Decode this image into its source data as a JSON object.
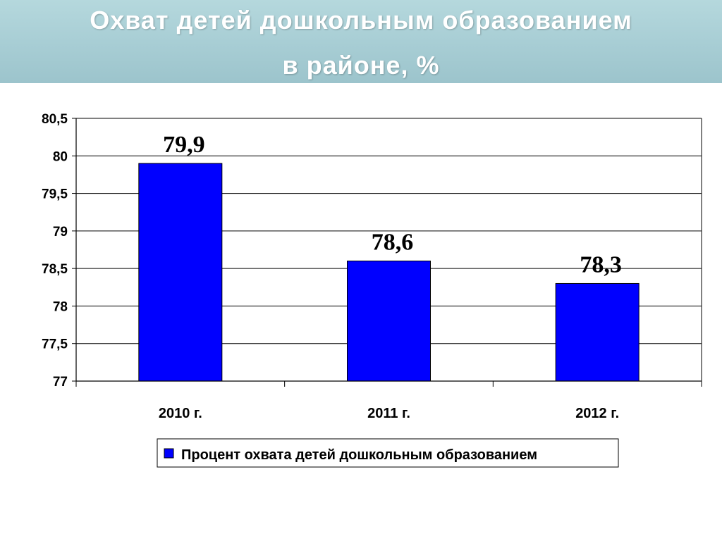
{
  "title": {
    "line1": "Охват детей дошкольным образованием",
    "line2": "в районе, %"
  },
  "colors": {
    "header_bg": "#a7cdd4",
    "bar": "#0000ff",
    "bar_border": "#000000"
  },
  "chart_data": {
    "type": "bar",
    "categories": [
      "2010 г.",
      "2011 г.",
      "2012 г."
    ],
    "series": [
      {
        "name": "Процент охвата детей дошкольным образованием",
        "values": [
          79.9,
          78.6,
          78.3
        ]
      }
    ],
    "data_labels": [
      "79,9",
      "78,6",
      "78,3"
    ],
    "yticks": [
      "77",
      "77,5",
      "78",
      "78,5",
      "79",
      "79,5",
      "80",
      "80,5"
    ],
    "ylim": [
      77,
      80.5
    ],
    "grid": true,
    "legend_position": "bottom"
  }
}
